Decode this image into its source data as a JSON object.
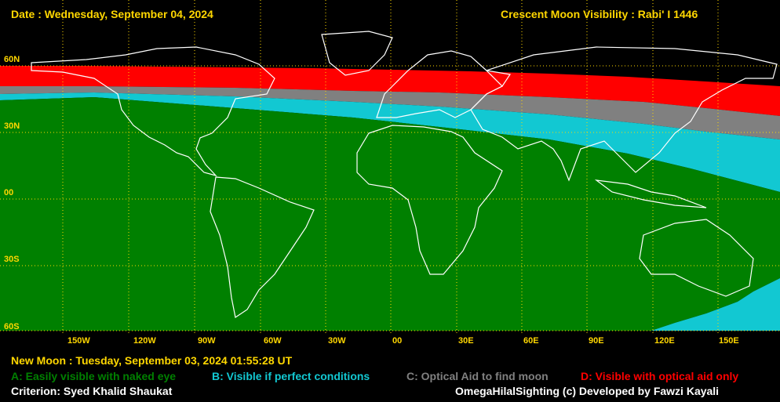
{
  "header": {
    "date": "Date : Wednesday, September 04, 2024",
    "title": "Crescent Moon Visibility : Rabi' I  1446"
  },
  "axes": {
    "latitude_labels": [
      "60N",
      "30N",
      "00",
      "30S",
      "60S"
    ],
    "longitude_labels": [
      "150W",
      "120W",
      "90W",
      "60W",
      "30W",
      "00",
      "30E",
      "60E",
      "90E",
      "120E",
      "150E"
    ]
  },
  "footer": {
    "new_moon": "New Moon : Tuesday, September 03, 2024  01:55:28  UT",
    "legend": [
      {
        "key": "A",
        "label": "A: Easily visible with naked eye",
        "color": "#008000"
      },
      {
        "key": "B",
        "label": "B: Visible if perfect conditions",
        "color": "#12C8D2"
      },
      {
        "key": "C",
        "label": "C: Optical Aid to find moon",
        "color": "#808080"
      },
      {
        "key": "D",
        "label": "D: Visible with optical aid only",
        "color": "#FF0000"
      }
    ],
    "criterion": "Criterion: Syed Khalid Shaukat",
    "credit": "OmegaHilalSighting  (c)  Developed by Fawzi Kayali"
  },
  "colors": {
    "header_text": "#FFD700",
    "axis_label": "#FFD700",
    "grid": "#FFD700",
    "coastline": "#FFFFFF",
    "body_text": "#FFFFFF"
  }
}
